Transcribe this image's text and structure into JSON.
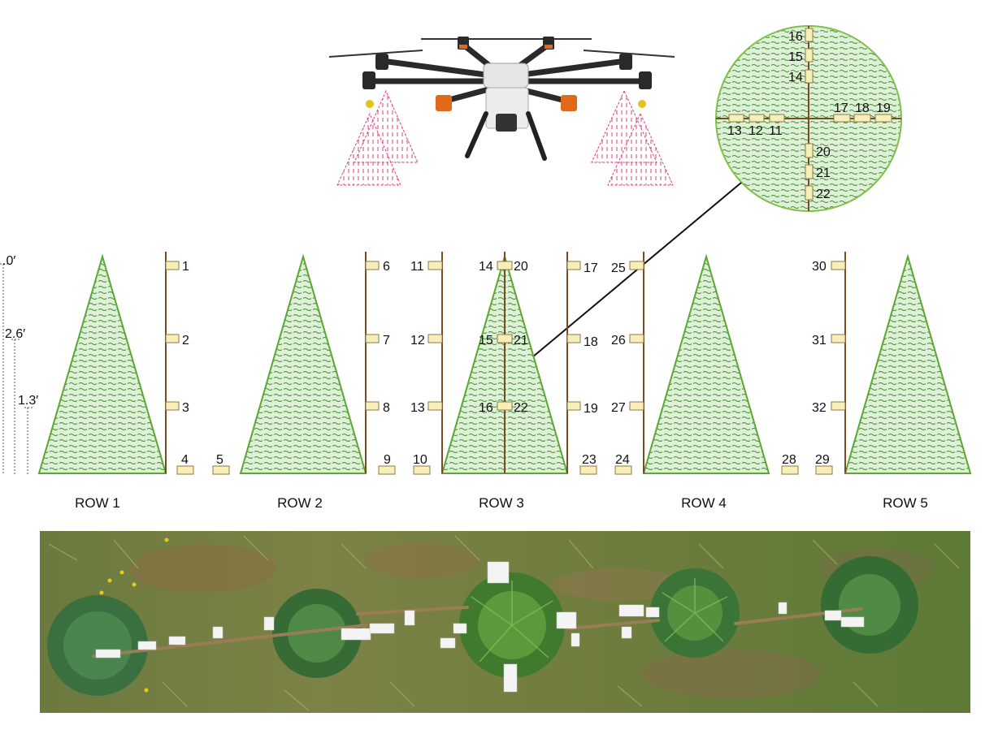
{
  "heights": [
    {
      "label": ".0′"
    },
    {
      "label": "2.6′"
    },
    {
      "label": "1.3′"
    }
  ],
  "rows": [
    {
      "label": "ROW 1"
    },
    {
      "label": "ROW 2"
    },
    {
      "label": "ROW 3"
    },
    {
      "label": "ROW 4"
    },
    {
      "label": "ROW 5"
    }
  ],
  "samplers": [
    "1",
    "2",
    "3",
    "4",
    "5",
    "6",
    "7",
    "8",
    "9",
    "10",
    "11",
    "12",
    "13",
    "14",
    "15",
    "16",
    "17",
    "18",
    "19",
    "20",
    "21",
    "22",
    "23",
    "24",
    "25",
    "26",
    "27",
    "28",
    "29",
    "30",
    "31",
    "32"
  ],
  "zoom_samplers": [
    "16",
    "15",
    "14",
    "13",
    "12",
    "11",
    "17",
    "18",
    "19",
    "20",
    "21",
    "22"
  ],
  "colors": {
    "tree_fill": "#dff0d8",
    "tree_stroke": "#5aa832",
    "tree_hatch": "#3f8f2c",
    "pole": "#7a4a22",
    "card": "#f8efb8",
    "spray": "#d8407a",
    "zoom_border": "#7fbf4a",
    "drone_frame": "#2a2a2a",
    "drone_body": "#e6e6e6",
    "motor_orange": "#e06a1a"
  }
}
